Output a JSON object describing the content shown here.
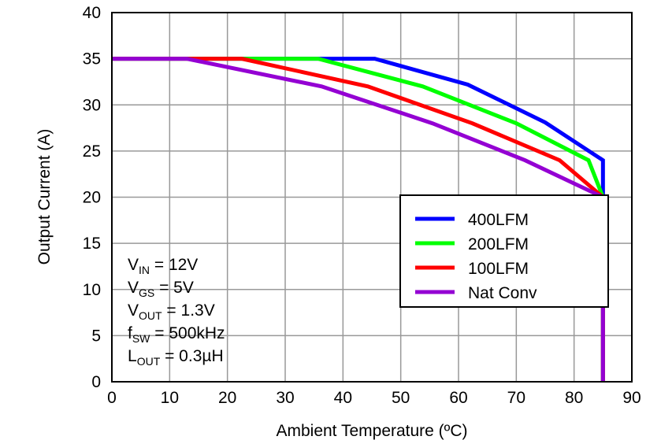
{
  "chart_data": {
    "type": "line",
    "title": "",
    "xlabel": "Ambient Temperature (ºC)",
    "ylabel": "Output Current (A)",
    "xlim": [
      0,
      90
    ],
    "ylim": [
      0,
      40
    ],
    "xticks": [
      0,
      10,
      20,
      30,
      40,
      50,
      60,
      70,
      80,
      90
    ],
    "yticks": [
      0,
      5,
      10,
      15,
      20,
      25,
      30,
      35,
      40
    ],
    "grid": true,
    "legend_position": "center-right",
    "series": [
      {
        "name": "400LFM",
        "color": "#0000ff",
        "x": [
          0,
          45.5,
          61.6,
          75,
          85,
          85,
          85
        ],
        "y": [
          35,
          35,
          32.2,
          28.1,
          24,
          20,
          0
        ]
      },
      {
        "name": "200LFM",
        "color": "#00ff00",
        "x": [
          0,
          35.7,
          53.8,
          70,
          82.5,
          85,
          85
        ],
        "y": [
          35,
          35,
          32,
          28,
          24,
          20,
          0
        ]
      },
      {
        "name": "100LFM",
        "color": "#ff0000",
        "x": [
          0,
          22.5,
          44.3,
          62.4,
          77.5,
          85,
          85
        ],
        "y": [
          35,
          35,
          32,
          28,
          24,
          20,
          0
        ]
      },
      {
        "name": "Nat Conv",
        "color": "#9400d3",
        "x": [
          0,
          13,
          36.3,
          55.5,
          71.5,
          85,
          85
        ],
        "y": [
          35,
          35,
          32,
          28,
          24,
          20,
          0
        ]
      }
    ],
    "annotations": [
      {
        "main": "V",
        "sub": "IN",
        "rest": " = 12V"
      },
      {
        "main": "V",
        "sub": "GS",
        "rest": " = 5V"
      },
      {
        "main": "V",
        "sub": "OUT",
        "rest": " = 1.3V"
      },
      {
        "main": "f",
        "sub": "SW",
        "rest": " = 500kHz"
      },
      {
        "main": "L",
        "sub": "OUT",
        "rest": " = 0.3µH"
      }
    ]
  }
}
